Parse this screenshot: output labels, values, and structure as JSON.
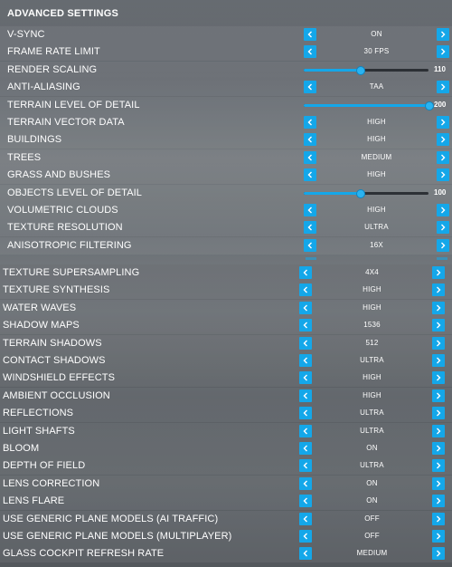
{
  "title": "ADVANCED SETTINGS",
  "colors": {
    "accent": "#14a7e9",
    "track": "#2c3035"
  },
  "icons": {
    "prev": "chevron-left-icon",
    "next": "chevron-right-icon"
  },
  "top_settings": [
    {
      "label": "V-SYNC",
      "type": "select",
      "value": "ON"
    },
    {
      "label": "FRAME RATE LIMIT",
      "type": "select",
      "value": "30 FPS"
    },
    {
      "label": "RENDER SCALING",
      "type": "slider",
      "value": "110",
      "fraction": 0.45
    },
    {
      "label": "ANTI-ALIASING",
      "type": "select",
      "value": "TAA"
    },
    {
      "label": "TERRAIN LEVEL OF DETAIL",
      "type": "slider",
      "value": "200",
      "fraction": 1.0
    },
    {
      "label": "TERRAIN VECTOR DATA",
      "type": "select",
      "value": "HIGH"
    },
    {
      "label": "BUILDINGS",
      "type": "select",
      "value": "HIGH"
    },
    {
      "label": "TREES",
      "type": "select",
      "value": "MEDIUM"
    },
    {
      "label": "GRASS AND BUSHES",
      "type": "select",
      "value": "HIGH"
    },
    {
      "label": "OBJECTS LEVEL OF DETAIL",
      "type": "slider",
      "value": "100",
      "fraction": 0.45
    },
    {
      "label": "VOLUMETRIC CLOUDS",
      "type": "select",
      "value": "HIGH"
    },
    {
      "label": "TEXTURE RESOLUTION",
      "type": "select",
      "value": "ULTRA"
    },
    {
      "label": "ANISOTROPIC FILTERING",
      "type": "select",
      "value": "16X"
    }
  ],
  "bottom_settings": [
    {
      "label": "TEXTURE SUPERSAMPLING",
      "type": "select",
      "value": "4X4"
    },
    {
      "label": "TEXTURE SYNTHESIS",
      "type": "select",
      "value": "HIGH"
    },
    {
      "label": "WATER WAVES",
      "type": "select",
      "value": "HIGH"
    },
    {
      "label": "SHADOW MAPS",
      "type": "select",
      "value": "1536"
    },
    {
      "label": "TERRAIN SHADOWS",
      "type": "select",
      "value": "512"
    },
    {
      "label": "CONTACT SHADOWS",
      "type": "select",
      "value": "ULTRA"
    },
    {
      "label": "WINDSHIELD EFFECTS",
      "type": "select",
      "value": "HIGH"
    },
    {
      "label": "AMBIENT OCCLUSION",
      "type": "select",
      "value": "HIGH"
    },
    {
      "label": "REFLECTIONS",
      "type": "select",
      "value": "ULTRA"
    },
    {
      "label": "LIGHT SHAFTS",
      "type": "select",
      "value": "ULTRA"
    },
    {
      "label": "BLOOM",
      "type": "select",
      "value": "ON"
    },
    {
      "label": "DEPTH OF FIELD",
      "type": "select",
      "value": "ULTRA"
    },
    {
      "label": "LENS CORRECTION",
      "type": "select",
      "value": "ON"
    },
    {
      "label": "LENS FLARE",
      "type": "select",
      "value": "ON"
    },
    {
      "label": "USE GENERIC PLANE MODELS (AI TRAFFIC)",
      "type": "select",
      "value": "OFF"
    },
    {
      "label": "USE GENERIC PLANE MODELS (MULTIPLAYER)",
      "type": "select",
      "value": "OFF"
    },
    {
      "label": "GLASS COCKPIT REFRESH RATE",
      "type": "select",
      "value": "MEDIUM"
    }
  ]
}
